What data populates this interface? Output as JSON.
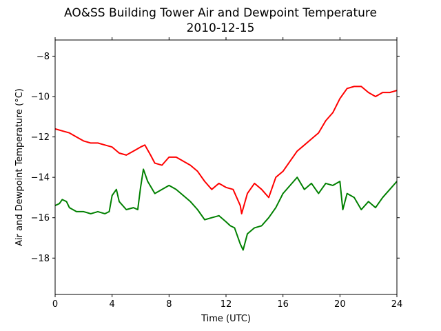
{
  "chart_data": {
    "type": "line",
    "title": "AO&SS Building Tower Air and Dewpoint Temperature",
    "subtitle": "2010-12-15",
    "xlabel": "Time (UTC)",
    "ylabel": "Air and Dewpoint Temperature (°C)",
    "xlim": [
      0,
      24
    ],
    "ylim": [
      -19.8,
      -7.2
    ],
    "x_ticks": [
      0,
      4,
      8,
      12,
      16,
      20,
      24
    ],
    "x_tick_labels": [
      "0",
      "4",
      "8",
      "12",
      "16",
      "20",
      "24"
    ],
    "y_ticks": [
      -18,
      -16,
      -14,
      -12,
      -10,
      -8
    ],
    "y_tick_labels": [
      "−18",
      "−16",
      "−14",
      "−12",
      "−10",
      "−8"
    ],
    "grid": false,
    "legend": false,
    "series": [
      {
        "color": "#ff0000",
        "x": [
          0,
          0.5,
          1,
          1.5,
          2,
          2.5,
          3,
          3.5,
          4,
          4.5,
          5,
          5.5,
          6,
          6.3,
          6.7,
          7,
          7.5,
          8,
          8.5,
          9,
          9.5,
          10,
          10.5,
          11,
          11.5,
          12,
          12.5,
          13,
          13.1,
          13.5,
          14,
          14.5,
          15,
          15.5,
          16,
          16.5,
          17,
          17.5,
          18,
          18.5,
          19,
          19.5,
          20,
          20.5,
          21,
          21.5,
          22,
          22.5,
          23,
          23.5,
          24
        ],
        "y": [
          -11.6,
          -11.7,
          -11.8,
          -12.0,
          -12.2,
          -12.3,
          -12.3,
          -12.4,
          -12.5,
          -12.8,
          -12.9,
          -12.7,
          -12.5,
          -12.4,
          -12.9,
          -13.3,
          -13.4,
          -13.0,
          -13.0,
          -13.2,
          -13.4,
          -13.7,
          -14.2,
          -14.6,
          -14.3,
          -14.5,
          -14.6,
          -15.4,
          -15.8,
          -14.8,
          -14.3,
          -14.6,
          -15.0,
          -14.0,
          -13.7,
          -13.2,
          -12.7,
          -12.4,
          -12.1,
          -11.8,
          -11.2,
          -10.8,
          -10.1,
          -9.6,
          -9.5,
          -9.5,
          -9.8,
          -10.0,
          -9.8,
          -9.8,
          -9.7
        ]
      },
      {
        "color": "#008000",
        "x": [
          0,
          0.3,
          0.5,
          0.8,
          1,
          1.5,
          2,
          2.5,
          3,
          3.5,
          3.8,
          4,
          4.3,
          4.5,
          5,
          5.5,
          5.8,
          6,
          6.2,
          6.5,
          7,
          7.5,
          8,
          8.5,
          9,
          9.5,
          10,
          10.5,
          11,
          11.5,
          12,
          12.3,
          12.6,
          13,
          13.2,
          13.5,
          14,
          14.5,
          15,
          15.5,
          16,
          16.5,
          17,
          17.5,
          18,
          18.5,
          19,
          19.5,
          20,
          20.2,
          20.5,
          21,
          21.5,
          22,
          22.5,
          23,
          23.5,
          24
        ],
        "y": [
          -15.4,
          -15.3,
          -15.1,
          -15.2,
          -15.5,
          -15.7,
          -15.7,
          -15.8,
          -15.7,
          -15.8,
          -15.7,
          -14.9,
          -14.6,
          -15.2,
          -15.6,
          -15.5,
          -15.6,
          -14.5,
          -13.6,
          -14.2,
          -14.8,
          -14.6,
          -14.4,
          -14.6,
          -14.9,
          -15.2,
          -15.6,
          -16.1,
          -16.0,
          -15.9,
          -16.2,
          -16.4,
          -16.5,
          -17.3,
          -17.6,
          -16.8,
          -16.5,
          -16.4,
          -16.0,
          -15.5,
          -14.8,
          -14.4,
          -14.0,
          -14.6,
          -14.3,
          -14.8,
          -14.3,
          -14.4,
          -14.2,
          -15.6,
          -14.8,
          -15.0,
          -15.6,
          -15.2,
          -15.5,
          -15.0,
          -14.6,
          -14.2
        ]
      }
    ]
  }
}
